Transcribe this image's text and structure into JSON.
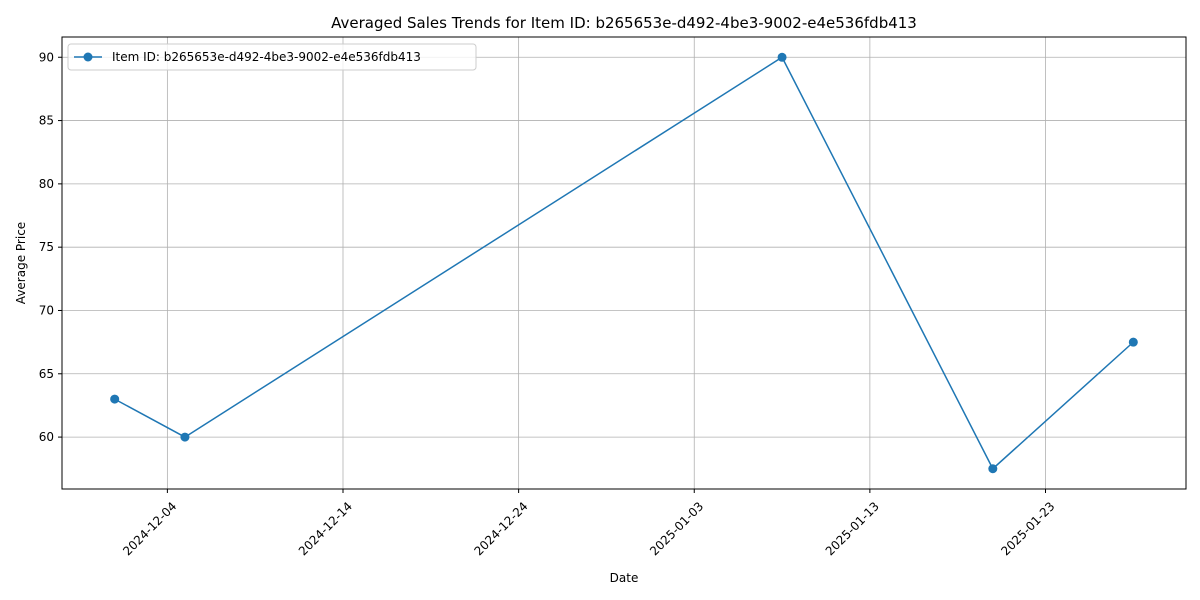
{
  "chart_data": {
    "type": "line",
    "title": "Averaged Sales Trends for Item ID: b265653e-d492-4be3-9002-e4e536fdb413",
    "xlabel": "Date",
    "ylabel": "Average Price",
    "x": [
      "2024-12-01",
      "2024-12-05",
      "2025-01-08",
      "2025-01-20",
      "2025-01-28"
    ],
    "series": [
      {
        "name": "Item ID: b265653e-d492-4be3-9002-e4e536fdb413",
        "color": "#1f77b4",
        "values": [
          63,
          60,
          90,
          57.5,
          67.5
        ]
      }
    ],
    "xlim": [
      "2024-11-28",
      "2025-01-31"
    ],
    "ylim": [
      55.9,
      91.6
    ],
    "xticks": [
      "2024-12-04",
      "2024-12-14",
      "2024-12-24",
      "2025-01-03",
      "2025-01-13",
      "2025-01-23"
    ],
    "yticks": [
      60,
      65,
      70,
      75,
      80,
      85,
      90
    ],
    "grid": true,
    "legend_position": "top-left",
    "marker": "circle"
  }
}
